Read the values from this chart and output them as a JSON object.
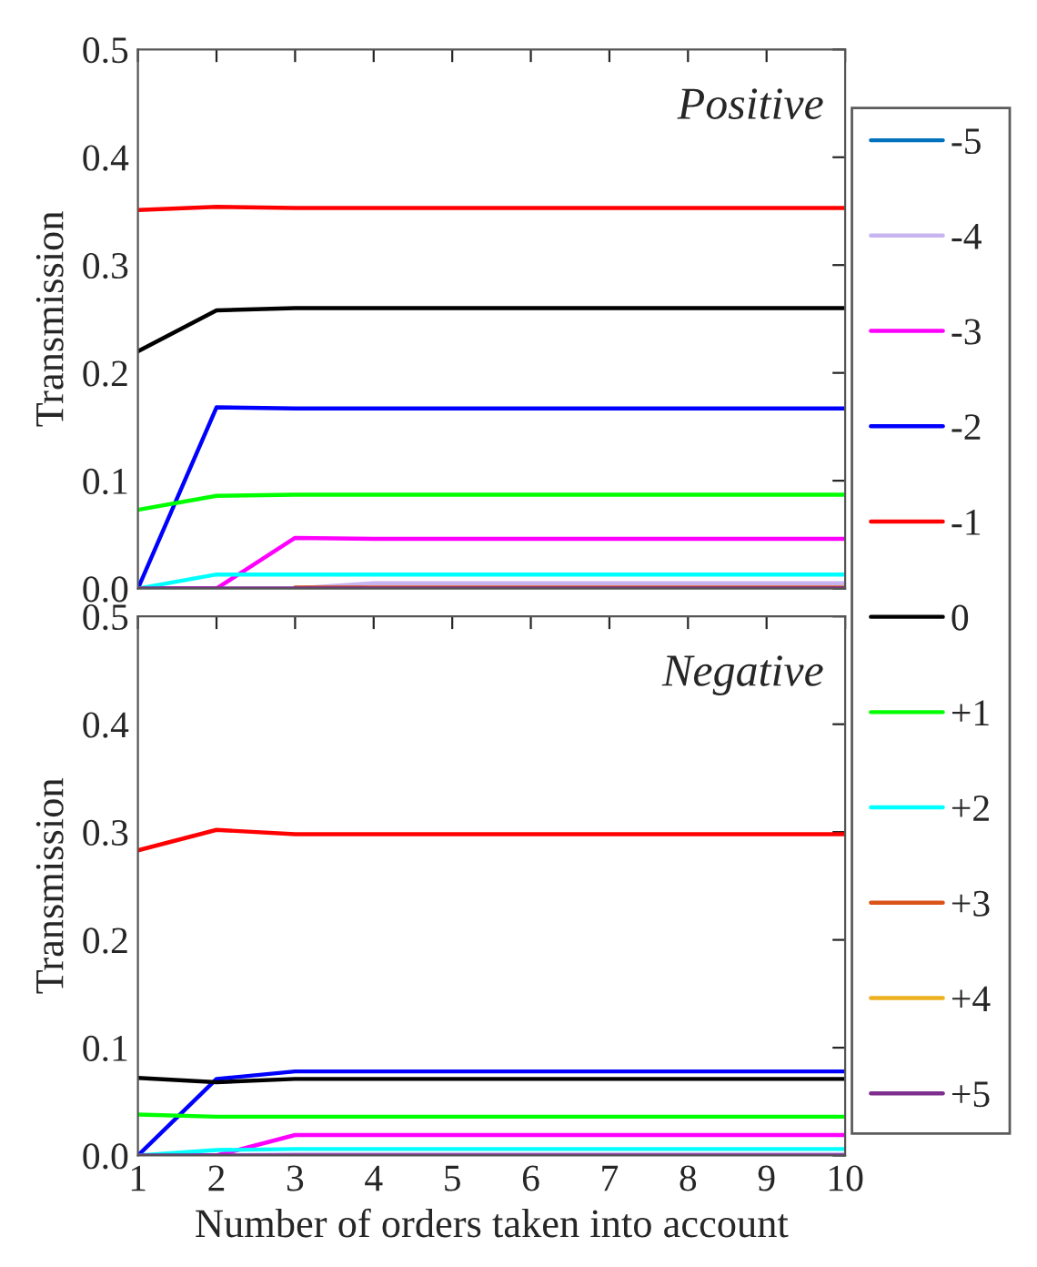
{
  "chart_data": [
    {
      "type": "line",
      "annotations": [
        "Positive"
      ],
      "ylabel": "Transmission",
      "x": [
        1,
        2,
        3,
        4,
        5,
        6,
        7,
        8,
        9,
        10
      ],
      "xlim": [
        1,
        10
      ],
      "xticks": [
        1,
        2,
        3,
        4,
        5,
        6,
        7,
        8,
        9,
        10
      ],
      "ylim": [
        0,
        0.5
      ],
      "yticks": [
        {
          "value": 0,
          "label": "0.0"
        },
        0.1,
        0.2,
        0.3,
        0.4,
        0.5
      ],
      "tick_labels": "y",
      "legend": "right",
      "grid": false,
      "series": [
        {
          "name": "-5",
          "color": "#0072bd",
          "values": [
            null,
            null,
            null,
            null,
            null,
            null,
            null,
            null,
            null,
            null
          ]
        },
        {
          "name": "-4",
          "color": "#c8b4f0",
          "values": [
            null,
            null,
            0,
            0.005,
            0.005,
            0.005,
            0.005,
            0.005,
            0.005,
            0.005
          ]
        },
        {
          "name": "-3",
          "color": "#ff00ff",
          "values": [
            0,
            0,
            0.047,
            0.046,
            0.046,
            0.046,
            0.046,
            0.046,
            0.046,
            0.046
          ]
        },
        {
          "name": "-2",
          "color": "#0000ff",
          "values": [
            0,
            0.168,
            0.167,
            0.167,
            0.167,
            0.167,
            0.167,
            0.167,
            0.167,
            0.167
          ]
        },
        {
          "name": "-1",
          "color": "#ff0000",
          "values": [
            0.351,
            0.354,
            0.353,
            0.353,
            0.353,
            0.353,
            0.353,
            0.353,
            0.353,
            0.353
          ]
        },
        {
          "name": "0",
          "color": "#000000",
          "values": [
            0.22,
            0.258,
            0.26,
            0.26,
            0.26,
            0.26,
            0.26,
            0.26,
            0.26,
            0.26
          ]
        },
        {
          "name": "+1",
          "color": "#00ff00",
          "values": [
            0.073,
            0.086,
            0.087,
            0.087,
            0.087,
            0.087,
            0.087,
            0.087,
            0.087,
            0.087
          ]
        },
        {
          "name": "+2",
          "color": "#00ffff",
          "values": [
            0,
            0.013,
            0.013,
            0.013,
            0.013,
            0.013,
            0.013,
            0.013,
            0.013,
            0.013
          ]
        },
        {
          "name": "+3",
          "color": "#d95319",
          "values": [
            null,
            null,
            0.001,
            0.001,
            0.001,
            0.001,
            0.001,
            0.001,
            0.001,
            0.001
          ]
        },
        {
          "name": "+4",
          "color": "#edb120",
          "values": [
            null,
            null,
            null,
            null,
            null,
            null,
            null,
            null,
            null,
            null
          ]
        },
        {
          "name": "+5",
          "color": "#7e2f8e",
          "values": [
            0,
            0,
            0,
            0,
            0,
            0,
            0,
            0,
            0,
            0
          ]
        }
      ]
    },
    {
      "type": "line",
      "annotations": [
        "Negative"
      ],
      "ylabel": "Transmission",
      "xlabel": "Number of orders taken into account",
      "x": [
        1,
        2,
        3,
        4,
        5,
        6,
        7,
        8,
        9,
        10
      ],
      "xlim": [
        1,
        10
      ],
      "xticks": [
        1,
        2,
        3,
        4,
        5,
        6,
        7,
        8,
        9,
        10
      ],
      "ylim": [
        0,
        0.5
      ],
      "yticks": [
        {
          "value": 0,
          "label": "0.0"
        },
        0.1,
        0.2,
        0.3,
        0.4,
        0.5
      ],
      "grid": false,
      "series": [
        {
          "color": "#0072bd",
          "values": [
            null,
            null,
            null,
            null,
            null,
            null,
            null,
            null,
            null,
            null
          ]
        },
        {
          "color": "#c8b4f0",
          "values": [
            0,
            0,
            0.001,
            0.001,
            0.001,
            0.001,
            0.001,
            0.001,
            0.001,
            0.001
          ]
        },
        {
          "color": "#ff00ff",
          "values": [
            0,
            0,
            0.019,
            0.019,
            0.019,
            0.019,
            0.019,
            0.019,
            0.019,
            0.019
          ]
        },
        {
          "color": "#0000ff",
          "values": [
            0,
            0.071,
            0.078,
            0.078,
            0.078,
            0.078,
            0.078,
            0.078,
            0.078,
            0.078
          ]
        },
        {
          "color": "#ff0000",
          "values": [
            0.283,
            0.302,
            0.298,
            0.298,
            0.298,
            0.298,
            0.298,
            0.298,
            0.298,
            0.298
          ]
        },
        {
          "color": "#000000",
          "values": [
            0.072,
            0.068,
            0.071,
            0.071,
            0.071,
            0.071,
            0.071,
            0.071,
            0.071,
            0.071
          ]
        },
        {
          "color": "#00ff00",
          "values": [
            0.038,
            0.036,
            0.036,
            0.036,
            0.036,
            0.036,
            0.036,
            0.036,
            0.036,
            0.036
          ]
        },
        {
          "color": "#00ffff",
          "values": [
            0,
            0.005,
            0.006,
            0.006,
            0.006,
            0.006,
            0.006,
            0.006,
            0.006,
            0.006
          ]
        },
        {
          "color": "#d95319",
          "values": [
            null,
            null,
            null,
            null,
            null,
            null,
            null,
            null,
            null,
            null
          ]
        },
        {
          "color": "#edb120",
          "values": [
            null,
            null,
            null,
            null,
            null,
            null,
            null,
            null,
            null,
            null
          ]
        },
        {
          "color": "#7e2f8e",
          "values": [
            0,
            0,
            0,
            0,
            0,
            0,
            0,
            0,
            0,
            0
          ]
        }
      ]
    }
  ]
}
